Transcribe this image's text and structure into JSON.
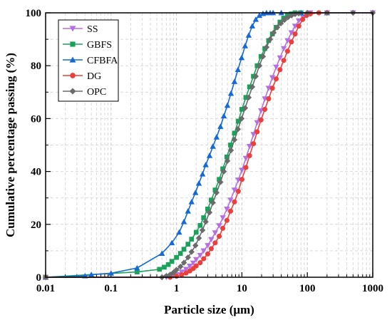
{
  "chart_data": {
    "type": "line",
    "xlabel": "Particle size (μm)",
    "ylabel": "Cumulative percentage passing (%)",
    "xscale": "log",
    "xlim": [
      0.01,
      1000
    ],
    "ylim": [
      0,
      100
    ],
    "x_ticks": [
      0.01,
      0.1,
      1,
      10,
      100,
      1000
    ],
    "x_tick_labels": [
      "0.01",
      "0.1",
      "1",
      "10",
      "100",
      "1000"
    ],
    "y_ticks": [
      0,
      20,
      40,
      60,
      80,
      100
    ],
    "y_tick_labels": [
      "0",
      "20",
      "40",
      "60",
      "80",
      "100"
    ],
    "grid": "dashed",
    "legend_position": "top-left",
    "series": [
      {
        "name": "SS",
        "color": "#b66fe3",
        "marker": "triangle-down",
        "x": [
          0.01,
          0.7,
          0.8,
          0.9,
          1.0,
          1.2,
          1.4,
          1.6,
          1.8,
          2.0,
          2.3,
          2.6,
          3.0,
          3.4,
          3.9,
          4.5,
          5.1,
          5.9,
          6.7,
          7.7,
          8.8,
          10.0,
          11.5,
          13.1,
          15.0,
          17.1,
          19.6,
          22.4,
          25.6,
          29.2,
          33.4,
          38.2,
          43.6,
          49.8,
          57,
          65,
          74,
          85,
          97,
          111,
          200,
          500,
          1000
        ],
        "y": [
          0,
          0,
          0.3,
          0.6,
          1.0,
          2.0,
          3.0,
          4.2,
          5.4,
          6.7,
          8.3,
          10.0,
          12.0,
          14.3,
          16.8,
          19.5,
          22.5,
          25.8,
          29.2,
          33.0,
          36.8,
          40.5,
          45.0,
          49.5,
          54.0,
          58.5,
          63.0,
          67.5,
          71.5,
          75.5,
          79.5,
          83.0,
          86.5,
          89.5,
          92.5,
          95.0,
          97.0,
          98.5,
          99.4,
          100,
          100,
          100,
          100
        ]
      },
      {
        "name": "GBFS",
        "color": "#1aa15a",
        "marker": "square",
        "x": [
          0.01,
          0.25,
          0.55,
          0.65,
          0.75,
          0.85,
          1.0,
          1.15,
          1.3,
          1.5,
          1.7,
          2.0,
          2.3,
          2.6,
          3.0,
          3.4,
          3.9,
          4.5,
          5.1,
          5.9,
          6.7,
          7.7,
          8.8,
          10.0,
          11.5,
          13.1,
          15.0,
          17.1,
          19.6,
          22.4,
          25.6,
          29.2,
          33.4,
          38.2,
          43.6,
          49.8,
          57,
          65,
          80
        ],
        "y": [
          0,
          2.0,
          3.0,
          3.8,
          4.8,
          6.0,
          7.5,
          9.0,
          10.6,
          12.5,
          14.4,
          17.0,
          19.6,
          22.5,
          25.8,
          29.2,
          33.0,
          37.0,
          41.0,
          45.5,
          50.0,
          54.5,
          59.0,
          63.5,
          68.0,
          72.0,
          76.0,
          80.0,
          83.5,
          86.5,
          89.5,
          92.0,
          94.5,
          96.5,
          98.0,
          99.0,
          99.6,
          100,
          100
        ]
      },
      {
        "name": "CFBFA",
        "color": "#1469d4",
        "marker": "triangle-up",
        "x": [
          0.01,
          0.04,
          0.05,
          0.1,
          0.25,
          0.6,
          0.85,
          1.1,
          1.3,
          1.5,
          1.7,
          1.95,
          2.2,
          2.5,
          2.8,
          3.2,
          3.6,
          4.1,
          4.7,
          5.3,
          6.0,
          6.8,
          7.7,
          8.7,
          9.9,
          11.2,
          12.7,
          14.4,
          16.3,
          18.5,
          21.0,
          23.8,
          27,
          30,
          40,
          80,
          200
        ],
        "y": [
          0,
          0.5,
          1.0,
          1.5,
          3.5,
          9.0,
          13.0,
          17.0,
          21.0,
          25.0,
          28.5,
          32.0,
          35.5,
          39.0,
          42.5,
          46.0,
          49.5,
          53.0,
          57.0,
          61.0,
          65.0,
          69.5,
          74.0,
          78.5,
          83.0,
          87.5,
          91.5,
          95.0,
          97.5,
          99.0,
          99.7,
          100,
          100,
          100,
          100,
          100,
          100
        ]
      },
      {
        "name": "DG",
        "color": "#e8413c",
        "marker": "circle",
        "x": [
          0.01,
          0.8,
          1.0,
          1.2,
          1.4,
          1.6,
          1.8,
          2.0,
          2.3,
          2.6,
          3.0,
          3.4,
          3.9,
          4.5,
          5.1,
          5.9,
          6.7,
          7.7,
          8.8,
          10.0,
          11.5,
          13.1,
          15.0,
          17.1,
          19.6,
          22.4,
          25.6,
          29.2,
          33.4,
          38.2,
          43.6,
          49.8,
          57,
          65,
          74,
          85,
          97,
          111,
          150,
          200
        ],
        "y": [
          0,
          0,
          0.4,
          0.9,
          1.6,
          2.4,
          3.3,
          4.3,
          5.5,
          7.0,
          8.8,
          10.8,
          13.0,
          15.5,
          18.5,
          21.5,
          25.0,
          28.5,
          32.5,
          37.0,
          41.5,
          46.0,
          50.5,
          55.0,
          59.5,
          63.5,
          67.5,
          71.5,
          75.0,
          78.5,
          82.0,
          85.5,
          89.0,
          92.0,
          95.0,
          97.5,
          99.0,
          99.6,
          100,
          100
        ]
      },
      {
        "name": "OPC",
        "color": "#6b6b6b",
        "marker": "diamond",
        "x": [
          0.01,
          0.6,
          0.7,
          0.8,
          0.9,
          1.0,
          1.15,
          1.3,
          1.5,
          1.7,
          1.95,
          2.2,
          2.5,
          2.8,
          3.2,
          3.6,
          4.1,
          4.7,
          5.3,
          6.0,
          6.8,
          7.7,
          8.7,
          9.9,
          11.2,
          12.7,
          14.4,
          16.3,
          18.5,
          21.0,
          23.8,
          27.0,
          30.6,
          34.7,
          39.4,
          44.6,
          50.6,
          57.4,
          65,
          74,
          100,
          200,
          500,
          1000
        ],
        "y": [
          0,
          0,
          0.5,
          1.0,
          1.8,
          2.8,
          4.0,
          5.5,
          7.5,
          9.6,
          12.0,
          14.8,
          17.8,
          21.0,
          24.5,
          28.2,
          32.0,
          36.0,
          40.0,
          44.0,
          48.0,
          52.0,
          56.0,
          60.0,
          64.0,
          68.0,
          72.0,
          76.0,
          80.0,
          83.5,
          87.0,
          90.0,
          92.5,
          94.5,
          96.0,
          97.3,
          98.3,
          99.0,
          99.5,
          99.8,
          100,
          100,
          100,
          100
        ]
      }
    ]
  }
}
